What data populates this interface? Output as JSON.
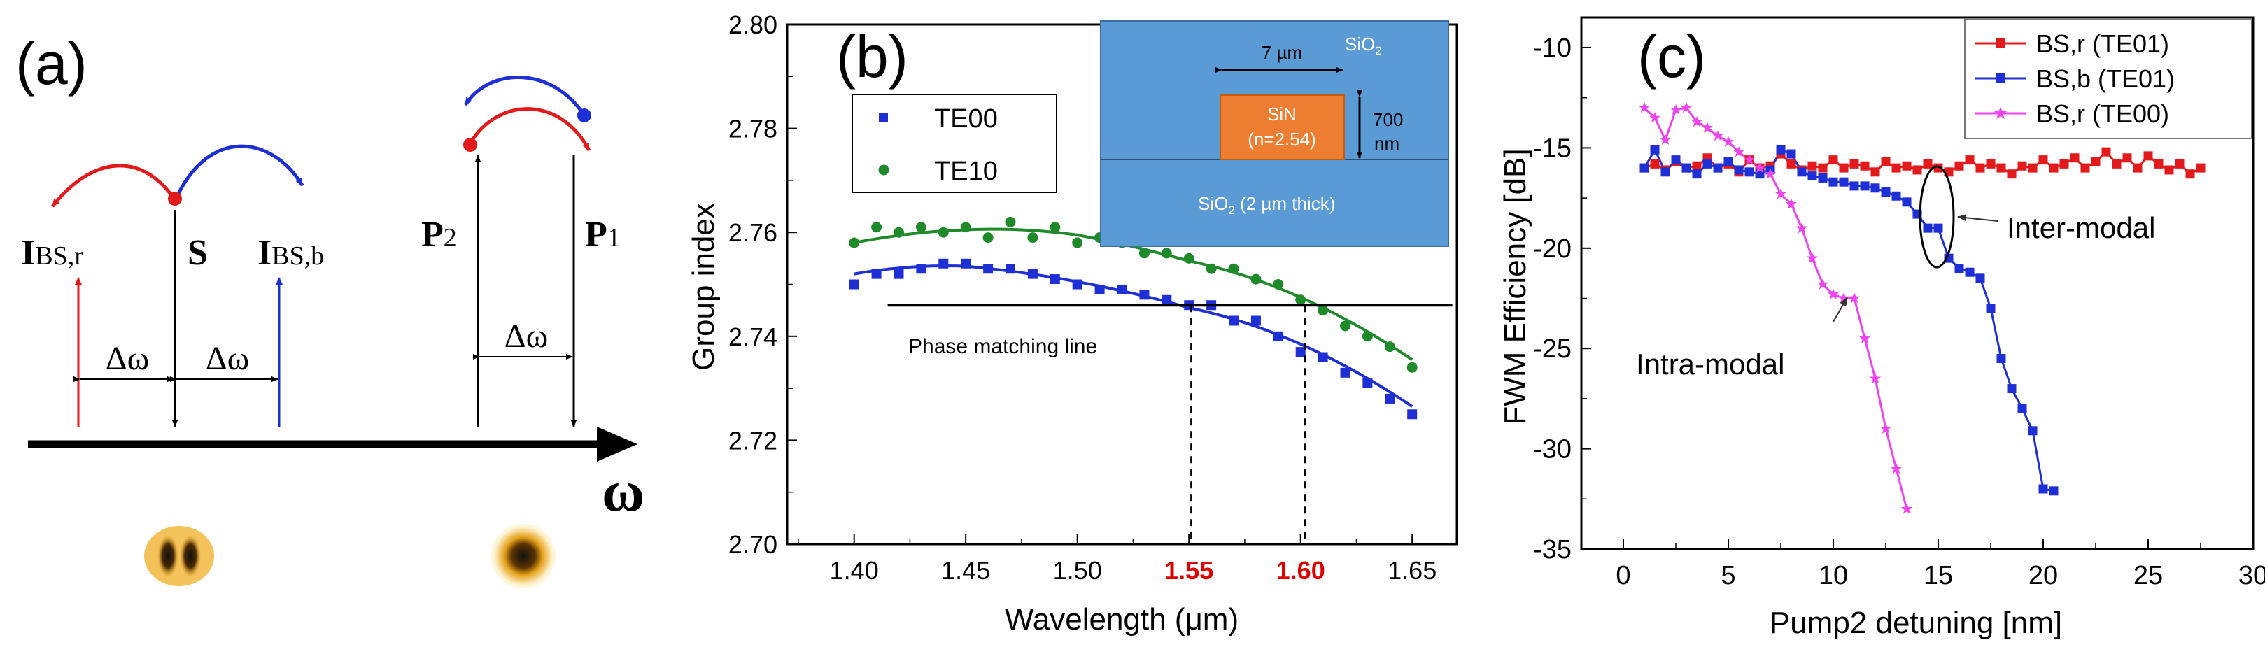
{
  "panel_labels": {
    "a": "(a)",
    "b": "(b)",
    "c": "(c)"
  },
  "colors": {
    "red": "#e31a1c",
    "blue": "#1f2fd6",
    "green": "#1e8a2a",
    "magenta": "#ee44ee",
    "inset_bg": "#5b9bd5",
    "sin_core": "#ed7d31",
    "highlight": "#e00000"
  },
  "diagram_a": {
    "labels": {
      "i_bs_r_main": "I",
      "i_bs_r_sub": "BS,r",
      "s": "S",
      "i_bs_b_main": "I",
      "i_bs_b_sub": "BS,b",
      "p2_main": "P",
      "p2_sub": "2",
      "p1_main": "P",
      "p1_sub": "1",
      "delta_omega_1": "Δω",
      "delta_omega_2": "Δω",
      "delta_omega_3": "Δω",
      "omega_axis": "ω"
    }
  },
  "chart_data": [
    {
      "panel": "b",
      "type": "scatter",
      "xlabel": "Wavelength (μm)",
      "ylabel": "Group index",
      "xlim": [
        1.37,
        1.67
      ],
      "ylim": [
        2.7,
        2.8
      ],
      "xticks": [
        "1.40",
        "1.45",
        "1.50",
        "1.55",
        "1.60",
        "1.65"
      ],
      "xticks_highlighted": [
        "1.55",
        "1.60"
      ],
      "yticks": [
        "2.70",
        "2.72",
        "2.74",
        "2.76",
        "2.78",
        "2.80"
      ],
      "phase_matching_label": "Phase matching line",
      "phase_matching_y": 2.746,
      "phase_matching_x": [
        1.415,
        1.668
      ],
      "crossings": [
        1.551,
        1.602
      ],
      "series": [
        {
          "name": "TE00",
          "marker": "square",
          "color": "#1f2fd6",
          "x": [
            1.4,
            1.41,
            1.42,
            1.43,
            1.44,
            1.45,
            1.46,
            1.47,
            1.48,
            1.49,
            1.5,
            1.51,
            1.52,
            1.53,
            1.54,
            1.55,
            1.56,
            1.57,
            1.58,
            1.59,
            1.6,
            1.61,
            1.62,
            1.63,
            1.64,
            1.65
          ],
          "y": [
            2.75,
            2.752,
            2.752,
            2.753,
            2.754,
            2.754,
            2.753,
            2.753,
            2.752,
            2.751,
            2.75,
            2.749,
            2.749,
            2.748,
            2.747,
            2.746,
            2.746,
            2.743,
            2.743,
            2.74,
            2.737,
            2.736,
            2.733,
            2.731,
            2.728,
            2.725
          ],
          "fit": [
            [
              1.4,
              2.752
            ],
            [
              1.45,
              2.7535
            ],
            [
              1.5,
              2.7505
            ],
            [
              1.55,
              2.7455
            ],
            [
              1.6,
              2.7385
            ],
            [
              1.65,
              2.7265
            ]
          ]
        },
        {
          "name": "TE10",
          "marker": "circle",
          "color": "#1e8a2a",
          "x": [
            1.4,
            1.41,
            1.42,
            1.43,
            1.44,
            1.45,
            1.46,
            1.47,
            1.48,
            1.49,
            1.5,
            1.51,
            1.52,
            1.53,
            1.54,
            1.55,
            1.56,
            1.57,
            1.58,
            1.59,
            1.6,
            1.61,
            1.62,
            1.63,
            1.64,
            1.65
          ],
          "y": [
            2.758,
            2.761,
            2.76,
            2.761,
            2.76,
            2.761,
            2.759,
            2.762,
            2.759,
            2.761,
            2.758,
            2.759,
            2.758,
            2.756,
            2.756,
            2.755,
            2.753,
            2.753,
            2.751,
            2.75,
            2.747,
            2.745,
            2.742,
            2.74,
            2.738,
            2.734
          ],
          "fit": [
            [
              1.4,
              2.758
            ],
            [
              1.45,
              2.7605
            ],
            [
              1.5,
              2.7595
            ],
            [
              1.55,
              2.7545
            ],
            [
              1.6,
              2.7475
            ],
            [
              1.65,
              2.7355
            ]
          ]
        }
      ],
      "inset": {
        "width_label": "7 µm",
        "sio2_top_main": "SiO",
        "sio2_top_sub": "2",
        "core_label_1": "SiN",
        "core_label_2": "(n=2.54)",
        "height_label_1": "700",
        "height_label_2": "nm",
        "sio2_bottom_main": "SiO",
        "sio2_bottom_sub": "2",
        "sio2_bottom_rest": " (2 µm thick)"
      }
    },
    {
      "panel": "c",
      "type": "line",
      "xlabel": "Pump2 detuning [nm]",
      "ylabel": "FWM Efficiency [dB]",
      "xlim": [
        -2,
        30
      ],
      "ylim": [
        -35,
        -8.5
      ],
      "xticks": [
        "0",
        "5",
        "10",
        "15",
        "20",
        "25",
        "30"
      ],
      "yticks": [
        "-10",
        "-15",
        "-20",
        "-25",
        "-30",
        "-35"
      ],
      "annotations": {
        "inter": "Inter-modal",
        "intra": "Intra-modal"
      },
      "series": [
        {
          "name": "BS,r (TE01)",
          "marker": "square",
          "color": "#e31a1c",
          "x": [
            1,
            1.5,
            2,
            2.5,
            3,
            3.5,
            4,
            4.5,
            5,
            5.5,
            6,
            6.5,
            7,
            7.5,
            8,
            8.5,
            9,
            9.5,
            10,
            10.5,
            11,
            11.5,
            12,
            12.5,
            13,
            13.5,
            14,
            14.5,
            15,
            15.5,
            16,
            16.5,
            17,
            17.5,
            18,
            18.5,
            19,
            19.5,
            20,
            20.5,
            21,
            21.5,
            22,
            22.5,
            23,
            23.5,
            24,
            24.5,
            25,
            25.5,
            26,
            26.5,
            27,
            27.5
          ],
          "y": [
            -16,
            -15.8,
            -16.1,
            -15.7,
            -16,
            -15.9,
            -15.5,
            -16,
            -15.8,
            -16.2,
            -15.6,
            -16,
            -15.9,
            -15.3,
            -15.8,
            -16.1,
            -15.9,
            -16,
            -15.6,
            -16,
            -15.8,
            -15.9,
            -16.2,
            -15.7,
            -16,
            -15.9,
            -16.1,
            -15.8,
            -16,
            -16.2,
            -15.9,
            -15.6,
            -16,
            -15.8,
            -16,
            -16.3,
            -15.9,
            -16,
            -15.6,
            -16,
            -15.8,
            -15.5,
            -16,
            -15.7,
            -15.2,
            -15.8,
            -15.5,
            -16,
            -15.4,
            -15.8,
            -16.1,
            -15.8,
            -16.3,
            -16
          ]
        },
        {
          "name": "BS,b (TE01)",
          "marker": "square",
          "color": "#1f2fd6",
          "x": [
            1,
            1.5,
            2,
            2.5,
            3,
            3.5,
            4,
            4.5,
            5,
            5.5,
            6,
            6.5,
            7,
            7.5,
            8,
            8.5,
            9,
            9.5,
            10,
            10.5,
            11,
            11.5,
            12,
            12.5,
            13,
            13.5,
            14,
            14.5,
            15,
            15.5,
            16,
            16.5,
            17,
            17.5,
            18,
            18.5,
            19,
            19.5,
            20,
            20.5
          ],
          "y": [
            -16,
            -15.1,
            -16.2,
            -15.6,
            -16,
            -16.3,
            -15.8,
            -16,
            -15.7,
            -16.1,
            -16.2,
            -16.3,
            -16.1,
            -15.1,
            -15.3,
            -16.2,
            -16.4,
            -16.5,
            -16.7,
            -16.7,
            -16.9,
            -16.9,
            -17,
            -17.2,
            -17.4,
            -17.7,
            -18.3,
            -19,
            -19,
            -20.5,
            -21,
            -21.2,
            -21.5,
            -23,
            -25.5,
            -27,
            -28,
            -29.1,
            -32,
            -32.1
          ]
        },
        {
          "name": "BS,r (TE00)",
          "marker": "star",
          "color": "#ee44ee",
          "x": [
            1,
            1.5,
            2,
            2.5,
            3,
            3.5,
            4,
            4.5,
            5,
            5.5,
            6,
            6.5,
            7,
            7.5,
            8,
            8.5,
            9,
            9.5,
            10,
            10.5,
            11,
            11.5,
            12,
            12.5,
            13,
            13.5
          ],
          "y": [
            -13,
            -13.5,
            -14.6,
            -13.1,
            -13,
            -13.7,
            -14,
            -14.4,
            -14.7,
            -15.2,
            -15.6,
            -16,
            -16.3,
            -17.3,
            -17.8,
            -19,
            -20.5,
            -21.8,
            -22.3,
            -22.5,
            -22.5,
            -24.5,
            -26.5,
            -29,
            -31,
            -33
          ]
        }
      ]
    }
  ]
}
